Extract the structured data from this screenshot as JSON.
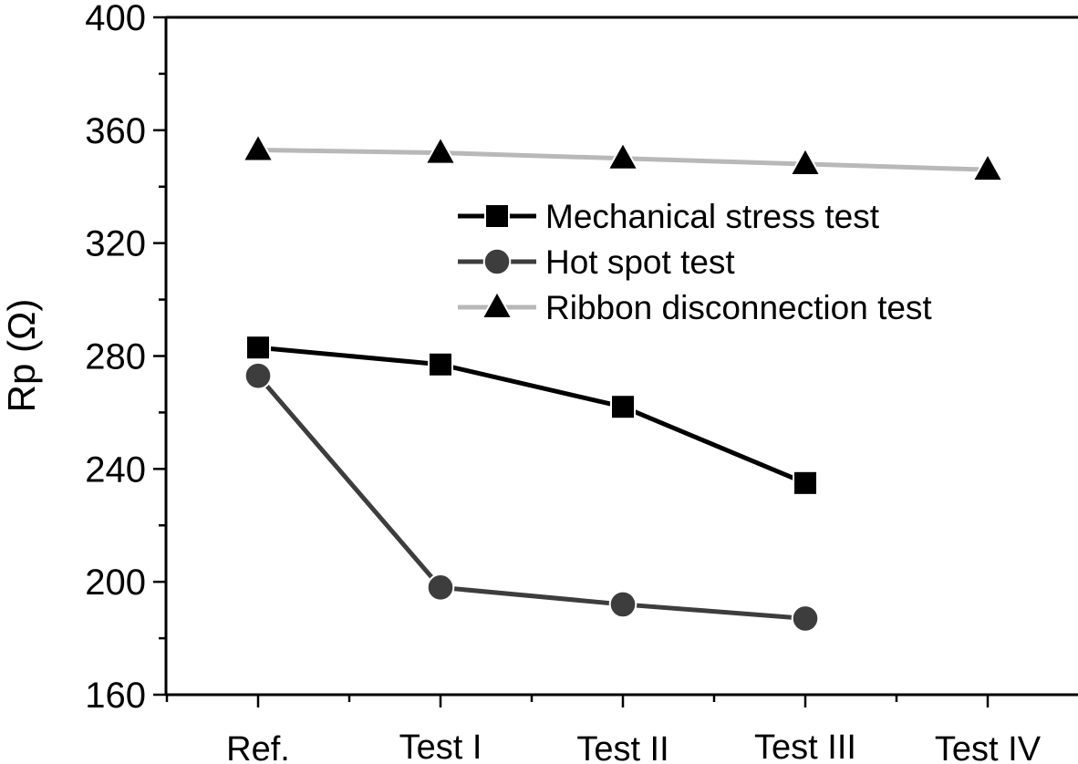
{
  "chart_data": {
    "type": "line",
    "title": "",
    "xlabel": "",
    "ylabel": "Rp (Ω)",
    "categories": [
      "Ref.",
      "Test I",
      "Test II",
      "Test III",
      "Test IV"
    ],
    "ylim": [
      160,
      400
    ],
    "yticks": [
      160,
      200,
      240,
      280,
      320,
      360,
      400
    ],
    "grid": false,
    "legend_position": "top-right",
    "series": [
      {
        "name": "Mechanical stress test",
        "marker": "square",
        "color": "#000000",
        "values": [
          283,
          277,
          262,
          235,
          null
        ]
      },
      {
        "name": "Hot spot test",
        "marker": "circle",
        "color": "#3d3d3d",
        "values": [
          273,
          198,
          192,
          187,
          null
        ]
      },
      {
        "name": "Ribbon disconnection test",
        "marker": "triangle",
        "color": "#b8b8b8",
        "values": [
          353,
          352,
          350,
          348,
          346
        ]
      }
    ]
  }
}
